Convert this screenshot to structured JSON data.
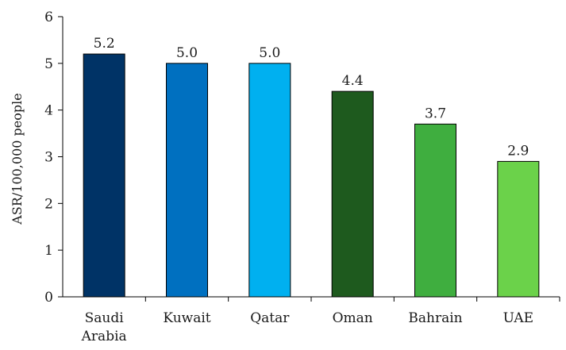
{
  "chart_data": {
    "type": "bar",
    "categories": [
      [
        "Saudi",
        "Arabia"
      ],
      [
        "Kuwait"
      ],
      [
        "Qatar"
      ],
      [
        "Oman"
      ],
      [
        "Bahrain"
      ],
      [
        "UAE"
      ]
    ],
    "values": [
      5.2,
      5.0,
      5.0,
      4.4,
      3.7,
      2.9
    ],
    "data_labels": [
      "5.2",
      "5.0",
      "5.0",
      "4.4",
      "3.7",
      "2.9"
    ],
    "colors": [
      "#003366",
      "#0070C0",
      "#00B0F0",
      "#1E5A1E",
      "#3FAE3F",
      "#6BD24A"
    ],
    "ylabel": "ASR/100,000 people",
    "xlabel": "",
    "ylim": [
      0,
      6
    ],
    "yticks": [
      "0",
      "1",
      "2",
      "3",
      "4",
      "5",
      "6"
    ],
    "grid": false
  }
}
